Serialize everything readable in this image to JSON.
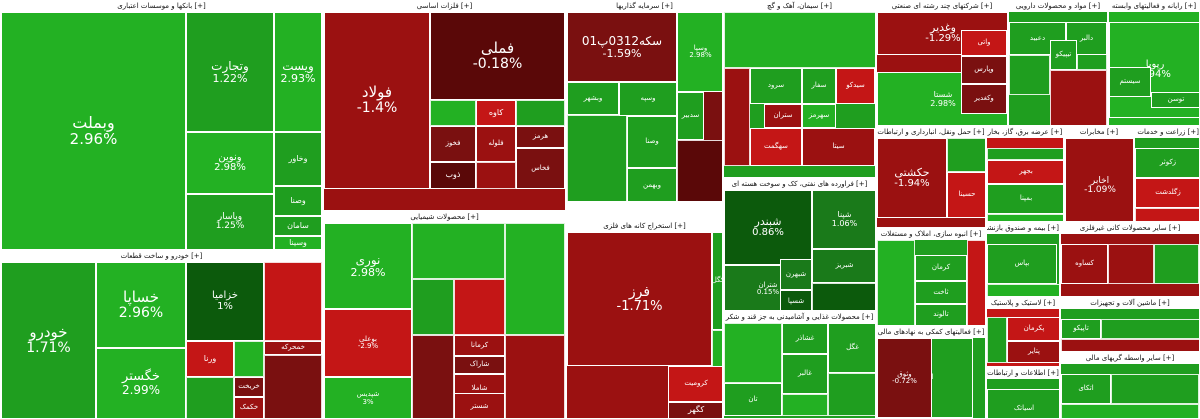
{
  "chart_data": {
    "type": "treemap",
    "colors": {
      "g1": "#1f9e1f",
      "g2": "#23b123",
      "g3": "#1a7a1a",
      "g4": "#0c5a0c",
      "r1": "#9b1111",
      "r2": "#7a1010",
      "r3": "#5a0808",
      "r4": "#c41616"
    },
    "sectors": [
      {
        "title": "[+] بانکها و موسسات اعتباری",
        "tiles": [
          {
            "symbol": "وبملت",
            "change": "2.96%",
            "c": "g2"
          },
          {
            "symbol": "وتجارت",
            "change": "1.22%",
            "c": "g1"
          },
          {
            "symbol": "ویست",
            "change": "2.93%",
            "c": "g2"
          },
          {
            "symbol": "ونوین",
            "change": "2.98%",
            "c": "g2"
          },
          {
            "symbol": "وپاسار",
            "change": "1.25%",
            "c": "g1"
          },
          {
            "symbol": "وخاور",
            "change": "",
            "c": "g1"
          },
          {
            "symbol": "وصنا",
            "change": "",
            "c": "g1"
          },
          {
            "symbol": "سامان",
            "change": "",
            "c": "g1"
          },
          {
            "symbol": "وسینا",
            "change": "",
            "c": "g2"
          }
        ]
      },
      {
        "title": "[+] خودرو و ساخت قطعات",
        "tiles": [
          {
            "symbol": "خساپا",
            "change": "2.96%",
            "c": "g2"
          },
          {
            "symbol": "خودرو",
            "change": "1.71%",
            "c": "g1"
          },
          {
            "symbol": "خگستر",
            "change": "2.99%",
            "c": "g2"
          },
          {
            "symbol": "خزامیا",
            "change": "1%",
            "c": "g4"
          },
          {
            "symbol": "خمحرکه",
            "change": "",
            "c": "r1"
          },
          {
            "symbol": "ورنا",
            "change": "",
            "c": "r4"
          },
          {
            "symbol": "خریخت",
            "change": "",
            "c": "r2"
          },
          {
            "symbol": "خکمک",
            "change": "",
            "c": "r1"
          }
        ]
      },
      {
        "title": "[+] فلزات اساسی",
        "tiles": [
          {
            "symbol": "فولاد",
            "change": "-1.4%",
            "c": "r1"
          },
          {
            "symbol": "فملی",
            "change": "-0.18%",
            "c": "r3"
          },
          {
            "symbol": "کاوه",
            "change": "",
            "c": "r4"
          },
          {
            "symbol": "فخوز",
            "change": "",
            "c": "r2"
          },
          {
            "symbol": "هرمز",
            "change": "",
            "c": "r2"
          },
          {
            "symbol": "فلوله",
            "change": "",
            "c": "r1"
          },
          {
            "symbol": "ذوب",
            "change": "",
            "c": "r3"
          },
          {
            "symbol": "فخاس",
            "change": "",
            "c": "r2"
          }
        ]
      },
      {
        "title": "[+] محصولات شیمیایی",
        "tiles": [
          {
            "symbol": "نوری",
            "change": "2.98%",
            "c": "g2"
          },
          {
            "symbol": "بوعلی",
            "change": "-2.9%",
            "c": "r4"
          },
          {
            "symbol": "شپدیس",
            "change": "3%",
            "c": "g2"
          },
          {
            "symbol": "کرمانا",
            "change": "",
            "c": "r1"
          },
          {
            "symbol": "شاراک",
            "change": "",
            "c": "r2"
          },
          {
            "symbol": "شاملا",
            "change": "",
            "c": "r1"
          },
          {
            "symbol": "شگویا",
            "change": "",
            "c": "r3"
          },
          {
            "symbol": "شستر",
            "change": "",
            "c": "r1"
          }
        ]
      },
      {
        "title": "[+] سرمایه گذاریها",
        "tiles": [
          {
            "symbol": "سکه0312پ01",
            "change": "-1.59%",
            "c": "r2"
          },
          {
            "symbol": "وسپه",
            "change": "",
            "c": "g1"
          },
          {
            "symbol": "وسپا",
            "change": "2.98%",
            "c": "g2"
          },
          {
            "symbol": "وبشهر",
            "change": "",
            "c": "g1"
          },
          {
            "symbol": "وصنا",
            "change": "",
            "c": "g1"
          },
          {
            "symbol": "سدبیر",
            "change": "",
            "c": "g1"
          },
          {
            "symbol": "وبهمن",
            "change": "",
            "c": "g1"
          }
        ]
      },
      {
        "title": "[+] استخراج کانه های فلزی",
        "tiles": [
          {
            "symbol": "فرز",
            "change": "-1.71%",
            "c": "r1"
          },
          {
            "symbol": "کرومیت",
            "change": "",
            "c": "r4"
          },
          {
            "symbol": "کگهر",
            "change": "",
            "c": "r2"
          },
          {
            "symbol": "کگل",
            "change": "",
            "c": "g1"
          },
          {
            "symbol": "کچاد",
            "change": "",
            "c": "g1"
          }
        ]
      },
      {
        "title": "[+] سیمان، آهک و گچ",
        "tiles": [
          {
            "symbol": "سرود",
            "change": "",
            "c": "g1"
          },
          {
            "symbol": "سفار",
            "change": "",
            "c": "g1"
          },
          {
            "symbol": "سیدکو",
            "change": "",
            "c": "r4"
          },
          {
            "symbol": "سهرمز",
            "change": "",
            "c": "g2"
          },
          {
            "symbol": "ستران",
            "change": "",
            "c": "r1"
          },
          {
            "symbol": "سهگمت",
            "change": "",
            "c": "r4"
          },
          {
            "symbol": "سیتا",
            "change": "",
            "c": "r1"
          }
        ]
      },
      {
        "title": "[+] فراورده های نفتی، کک و سوخت هسته ای",
        "tiles": [
          {
            "symbol": "شبندر",
            "change": "0.86%",
            "c": "g4"
          },
          {
            "symbol": "شپنا",
            "change": "1.06%",
            "c": "g3"
          },
          {
            "symbol": "شتران",
            "change": "0.15%",
            "c": "g3"
          },
          {
            "symbol": "شبهرن",
            "change": "",
            "c": "g3"
          },
          {
            "symbol": "شبریز",
            "change": "",
            "c": "g3"
          },
          {
            "symbol": "شسپا",
            "change": "",
            "c": "g4"
          }
        ]
      },
      {
        "title": "[+] محصولات غذایی و آشامیدنی به جز قند و شکر",
        "tiles": [
          {
            "symbol": "غشاذر",
            "change": "",
            "c": "g1"
          },
          {
            "symbol": "غالبر",
            "change": "",
            "c": "g1"
          },
          {
            "symbol": "غگل",
            "change": "",
            "c": "g1"
          },
          {
            "symbol": "تان",
            "change": "",
            "c": "g1"
          }
        ]
      },
      {
        "title": "[+] شرکتهای چند رشته ای صنعتی",
        "tiles": [
          {
            "symbol": "وغدیر",
            "change": "-1.29%",
            "c": "r1"
          },
          {
            "symbol": "شستا",
            "change": "2.98%",
            "c": "g2"
          },
          {
            "symbol": "واتی",
            "change": "",
            "c": "r4"
          },
          {
            "symbol": "وپارس",
            "change": "",
            "c": "r2"
          },
          {
            "symbol": "وکغدیر",
            "change": "",
            "c": "r2"
          }
        ]
      },
      {
        "title": "[+] حمل ونقل، انبارداری و ارتباطات",
        "tiles": [
          {
            "symbol": "حکشتی",
            "change": "-1.94%",
            "c": "r1"
          },
          {
            "symbol": "حسینا",
            "change": "",
            "c": "r4"
          }
        ]
      },
      {
        "title": "[+] انبوه سازی، املاک و مستغلات",
        "tiles": [
          {
            "symbol": "کرمان",
            "change": "",
            "c": "g1"
          },
          {
            "symbol": "ثاخت",
            "change": "",
            "c": "g1"
          },
          {
            "symbol": "تالوند",
            "change": "",
            "c": "g1"
          }
        ]
      },
      {
        "title": "[+] فعالیتهای کمکی به نهادهای مالی",
        "tiles": [
          {
            "symbol": "انرژی",
            "change": "",
            "c": "g1"
          },
          {
            "symbol": "وثوق",
            "change": "-0.72%",
            "c": "r2"
          }
        ]
      },
      {
        "title": "[+] مواد و محصولات دارویی",
        "tiles": [
          {
            "symbol": "دعبید",
            "change": "",
            "c": "g1"
          },
          {
            "symbol": "دالبر",
            "change": "",
            "c": "g1"
          },
          {
            "symbol": "تیپیکو",
            "change": "",
            "c": "g1"
          }
        ]
      },
      {
        "title": "[+] رایانه و فعالیتهای وابسته",
        "tiles": [
          {
            "symbol": "رپویا",
            "change": "2.94%",
            "c": "g2"
          },
          {
            "symbol": "سیستم",
            "change": "",
            "c": "g1"
          },
          {
            "symbol": "توسن",
            "change": "",
            "c": "g1"
          }
        ]
      },
      {
        "title": "[+] عرضه برق، گاز، بخار",
        "tiles": [
          {
            "symbol": "بجهر",
            "change": "",
            "c": "r4"
          },
          {
            "symbol": "بمپنا",
            "change": "",
            "c": "g1"
          }
        ]
      },
      {
        "title": "[+] مخابرات",
        "tiles": [
          {
            "symbol": "اخابر",
            "change": "-1.09%",
            "c": "r1"
          }
        ]
      },
      {
        "title": "[+] زراعت و خدمات وابسته",
        "tiles": [
          {
            "symbol": "زکوثر",
            "change": "",
            "c": "g1"
          },
          {
            "symbol": "زگلدشت",
            "change": "",
            "c": "r4"
          }
        ]
      },
      {
        "title": "[+] سایر محصولات کانی غیرفلزی",
        "tiles": [
          {
            "symbol": "کساوه",
            "change": "",
            "c": "r1"
          }
        ]
      },
      {
        "title": "[+] لاستیک و پلاستیک",
        "tiles": [
          {
            "symbol": "پکرمان",
            "change": "",
            "c": "r4"
          },
          {
            "symbol": "پتایر",
            "change": "",
            "c": "r1"
          }
        ]
      },
      {
        "title": "[+] ماشین آلات و تجهیزات",
        "tiles": [
          {
            "symbol": "تاپیکو",
            "change": "",
            "c": "g1"
          }
        ]
      },
      {
        "title": "[+] اطلاعات و ارتباطات",
        "tiles": [
          {
            "symbol": "اسیاتک",
            "change": "",
            "c": "g1"
          }
        ]
      },
      {
        "title": "[+] سایر واسطه گریهای مالی",
        "tiles": [
          {
            "symbol": "اتکای",
            "change": "",
            "c": "g1"
          }
        ]
      },
      {
        "title": "[+] بیمه و صندوق بازنشستگی",
        "tiles": [
          {
            "symbol": "بپاس",
            "change": "",
            "c": "g1"
          }
        ]
      }
    ]
  }
}
